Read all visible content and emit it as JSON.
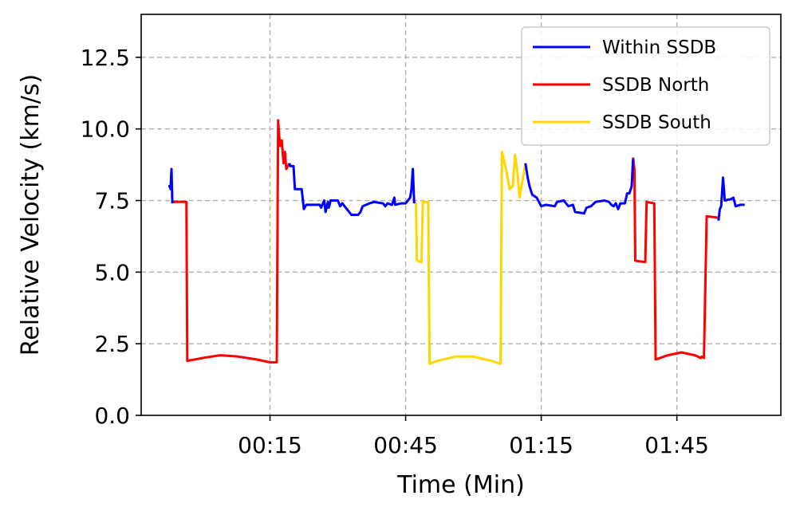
{
  "chart_data": {
    "type": "line",
    "title": "",
    "xlabel": "Time (Min)",
    "ylabel": "Relative Velocity (km/s)",
    "xlim": [
      -13.5,
      128
    ],
    "ylim": [
      0,
      14
    ],
    "xticks": [
      {
        "value": 15,
        "label": "00:15"
      },
      {
        "value": 45,
        "label": "00:45"
      },
      {
        "value": 75,
        "label": "01:15"
      },
      {
        "value": 105,
        "label": "01:45"
      }
    ],
    "yticks": [
      {
        "value": 0,
        "label": "0.0"
      },
      {
        "value": 2.5,
        "label": "2.5"
      },
      {
        "value": 5,
        "label": "5.0"
      },
      {
        "value": 7.5,
        "label": "7.5"
      },
      {
        "value": 10,
        "label": "10.0"
      },
      {
        "value": 12.5,
        "label": "12.5"
      }
    ],
    "grid": true,
    "legend_position": "top-right",
    "legend": [
      {
        "name": "Within SSDB",
        "color": "#0000ff"
      },
      {
        "name": "SSDB North",
        "color": "#ff0000"
      },
      {
        "name": "SSDB South",
        "color": "#ffd700"
      }
    ],
    "series": [
      {
        "name": "Within SSDB",
        "color": "#0000ff",
        "segments": [
          [
            [
              -7.5,
              8.0
            ],
            [
              -7.2,
              8.0
            ],
            [
              -7.0,
              7.9
            ],
            [
              -6.8,
              8.6
            ],
            [
              -6.6,
              7.4
            ]
          ],
          [
            [
              19.3,
              8.8
            ],
            [
              19.5,
              8.7
            ],
            [
              20.2,
              8.7
            ],
            [
              20.5,
              7.9
            ],
            [
              22,
              7.9
            ],
            [
              22.5,
              7.2
            ],
            [
              23,
              7.35
            ],
            [
              26,
              7.35
            ],
            [
              26.3,
              7.25
            ],
            [
              27,
              7.5
            ],
            [
              27.3,
              7.1
            ],
            [
              27.8,
              7.45
            ],
            [
              28,
              7.25
            ],
            [
              28.4,
              7.5
            ],
            [
              30,
              7.5
            ],
            [
              30.5,
              7.3
            ],
            [
              31,
              7.4
            ],
            [
              32,
              7.2
            ],
            [
              33,
              7.0
            ],
            [
              34.5,
              7.0
            ],
            [
              35,
              7.1
            ],
            [
              35.5,
              7.3
            ],
            [
              37,
              7.4
            ],
            [
              38,
              7.45
            ],
            [
              40,
              7.4
            ],
            [
              40.5,
              7.3
            ],
            [
              41,
              7.4
            ],
            [
              42,
              7.35
            ],
            [
              42.5,
              7.6
            ],
            [
              42.7,
              7.35
            ],
            [
              44,
              7.4
            ],
            [
              45,
              7.4
            ],
            [
              45.5,
              7.5
            ],
            [
              46,
              7.6
            ],
            [
              46.3,
              7.9
            ],
            [
              46.6,
              8.6
            ],
            [
              46.9,
              7.4
            ]
          ],
          [
            [
              71.5,
              8.8
            ],
            [
              72,
              8.3
            ],
            [
              72.4,
              8.0
            ],
            [
              73,
              7.7
            ],
            [
              74,
              7.6
            ],
            [
              75,
              7.3
            ],
            [
              76,
              7.35
            ],
            [
              78,
              7.3
            ],
            [
              78.5,
              7.45
            ],
            [
              80,
              7.5
            ],
            [
              81,
              7.3
            ],
            [
              82,
              7.35
            ],
            [
              82.5,
              7.1
            ],
            [
              84.5,
              7.05
            ],
            [
              85,
              7.25
            ],
            [
              86,
              7.3
            ],
            [
              87,
              7.45
            ],
            [
              89,
              7.5
            ],
            [
              90,
              7.45
            ],
            [
              90.5,
              7.35
            ],
            [
              91,
              7.3
            ],
            [
              91.5,
              7.4
            ],
            [
              92,
              7.2
            ],
            [
              92.5,
              7.4
            ],
            [
              93.5,
              7.4
            ],
            [
              94,
              7.75
            ],
            [
              94.5,
              7.75
            ],
            [
              95,
              8.0
            ],
            [
              95.3,
              8.95
            ]
          ],
          [
            [
              114.2,
              6.8
            ],
            [
              114.5,
              7.2
            ],
            [
              114.8,
              7.3
            ],
            [
              115.2,
              8.3
            ],
            [
              115.6,
              7.5
            ],
            [
              117,
              7.55
            ],
            [
              117.5,
              7.6
            ],
            [
              118,
              7.3
            ],
            [
              119,
              7.35
            ],
            [
              120,
              7.35
            ]
          ]
        ]
      },
      {
        "name": "SSDB North",
        "color": "#ff0000",
        "segments": [
          [
            [
              -6.6,
              7.45
            ],
            [
              -3.5,
              7.45
            ],
            [
              -3.3,
              1.9
            ],
            [
              0,
              2.0
            ],
            [
              4,
              2.1
            ],
            [
              8,
              2.05
            ],
            [
              12,
              1.95
            ],
            [
              15,
              1.85
            ],
            [
              16.5,
              1.85
            ],
            [
              16.8,
              10.3
            ],
            [
              17.2,
              9.4
            ],
            [
              17.6,
              9.6
            ],
            [
              18,
              8.8
            ],
            [
              18.3,
              9.2
            ],
            [
              18.6,
              8.6
            ],
            [
              19.3,
              8.8
            ]
          ],
          [
            [
              95.3,
              9.0
            ],
            [
              95.6,
              8.6
            ],
            [
              95.8,
              5.4
            ],
            [
              98,
              5.35
            ],
            [
              98.3,
              7.45
            ],
            [
              100,
              7.4
            ],
            [
              100.3,
              1.95
            ],
            [
              103,
              2.1
            ],
            [
              106,
              2.2
            ],
            [
              109,
              2.1
            ],
            [
              110.3,
              2.0
            ],
            [
              110.5,
              2.05
            ],
            [
              111,
              2.0
            ],
            [
              111.6,
              6.95
            ],
            [
              114.2,
              6.9
            ]
          ]
        ]
      },
      {
        "name": "SSDB South",
        "color": "#ffd700",
        "segments": [
          [
            [
              46.9,
              7.4
            ],
            [
              47.3,
              7.4
            ],
            [
              47.5,
              5.4
            ],
            [
              48.5,
              5.35
            ],
            [
              48.8,
              7.45
            ],
            [
              50,
              7.45
            ],
            [
              50.3,
              1.8
            ],
            [
              52,
              1.9
            ],
            [
              56,
              2.05
            ],
            [
              60,
              2.05
            ],
            [
              64,
              1.9
            ],
            [
              66,
              1.8
            ],
            [
              66.3,
              9.2
            ],
            [
              67.2,
              8.6
            ],
            [
              68,
              7.9
            ],
            [
              68.7,
              8.0
            ],
            [
              69.2,
              9.1
            ],
            [
              69.7,
              8.5
            ],
            [
              70.2,
              7.6
            ],
            [
              71.5,
              8.8
            ]
          ]
        ]
      }
    ]
  }
}
